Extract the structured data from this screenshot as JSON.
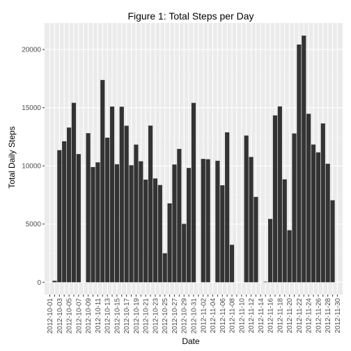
{
  "chart_data": {
    "type": "bar",
    "title": "Figure 1: Total Steps per Day",
    "xlabel": "Date",
    "ylabel": "Total Daily Steps",
    "ylim": [
      -1060,
      22280
    ],
    "yticks": [
      0,
      5000,
      10000,
      15000,
      20000
    ],
    "grid": true,
    "bar_color": "#333333",
    "panel_color": "#ebebeb",
    "grid_color": "#ffffff",
    "categories": [
      "2012-10-01",
      "2012-10-02",
      "2012-10-03",
      "2012-10-04",
      "2012-10-05",
      "2012-10-06",
      "2012-10-07",
      "2012-10-08",
      "2012-10-09",
      "2012-10-10",
      "2012-10-11",
      "2012-10-12",
      "2012-10-13",
      "2012-10-14",
      "2012-10-15",
      "2012-10-16",
      "2012-10-17",
      "2012-10-18",
      "2012-10-19",
      "2012-10-20",
      "2012-10-21",
      "2012-10-22",
      "2012-10-23",
      "2012-10-24",
      "2012-10-25",
      "2012-10-26",
      "2012-10-27",
      "2012-10-28",
      "2012-10-29",
      "2012-10-30",
      "2012-10-31",
      "2012-11-01",
      "2012-11-02",
      "2012-11-03",
      "2012-11-04",
      "2012-11-05",
      "2012-11-06",
      "2012-11-07",
      "2012-11-08",
      "2012-11-09",
      "2012-11-10",
      "2012-11-11",
      "2012-11-12",
      "2012-11-13",
      "2012-11-14",
      "2012-11-15",
      "2012-11-16",
      "2012-11-17",
      "2012-11-18",
      "2012-11-19",
      "2012-11-20",
      "2012-11-21",
      "2012-11-22",
      "2012-11-23",
      "2012-11-24",
      "2012-11-25",
      "2012-11-26",
      "2012-11-27",
      "2012-11-28",
      "2012-11-29",
      "2012-11-30"
    ],
    "tick_labels": [
      "2012-10-01",
      "2012-10-03",
      "2012-10-05",
      "2012-10-07",
      "2012-10-09",
      "2012-10-11",
      "2012-10-13",
      "2012-10-15",
      "2012-10-17",
      "2012-10-19",
      "2012-10-21",
      "2012-10-23",
      "2012-10-25",
      "2012-10-27",
      "2012-10-29",
      "2012-10-31",
      "2012-11-02",
      "2012-11-04",
      "2012-11-06",
      "2012-11-08",
      "2012-11-10",
      "2012-11-12",
      "2012-11-14",
      "2012-11-16",
      "2012-11-18",
      "2012-11-20",
      "2012-11-22",
      "2012-11-24",
      "2012-11-26",
      "2012-11-28",
      "2012-11-30"
    ],
    "values": [
      0,
      126,
      11352,
      12116,
      13294,
      15420,
      11015,
      0,
      12811,
      9900,
      10304,
      17382,
      12426,
      15098,
      10139,
      15084,
      13452,
      10056,
      11829,
      10395,
      8821,
      13460,
      8918,
      8355,
      2492,
      6778,
      10119,
      11458,
      5018,
      9819,
      15414,
      0,
      10600,
      10571,
      0,
      10439,
      8334,
      12883,
      3219,
      0,
      0,
      12608,
      10765,
      7336,
      0,
      41,
      5441,
      14339,
      15110,
      8841,
      4472,
      12787,
      20427,
      21194,
      14478,
      11834,
      11162,
      13646,
      10183,
      7047,
      0
    ]
  }
}
